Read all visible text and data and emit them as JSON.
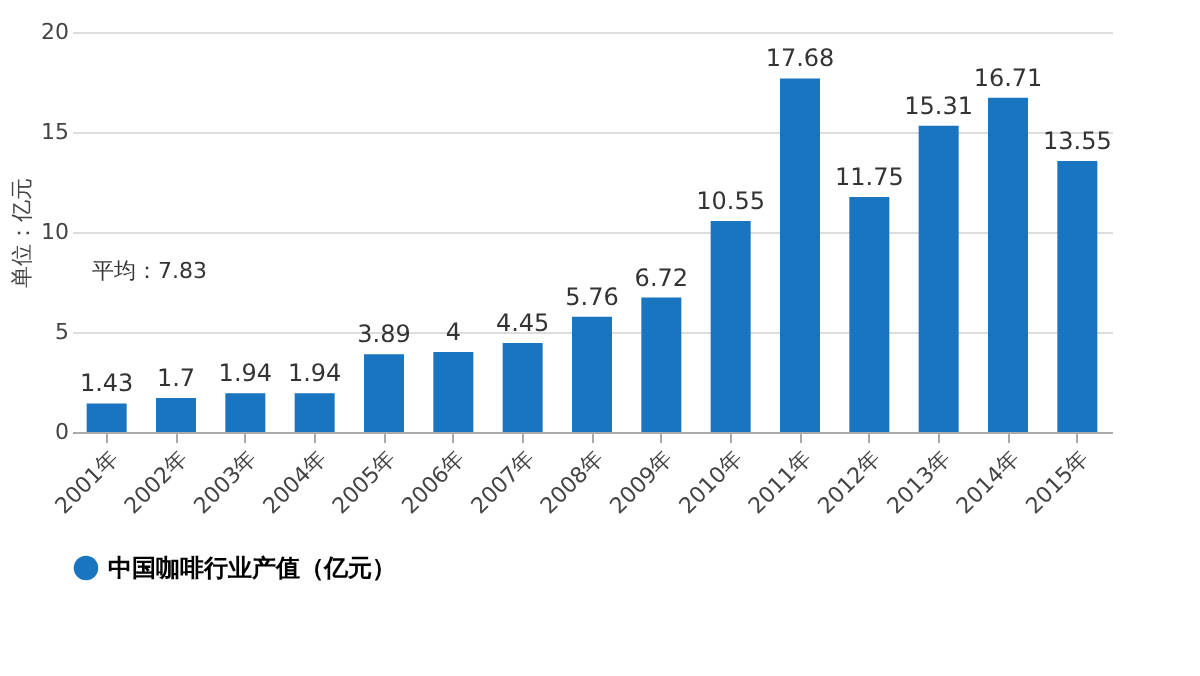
{
  "chart_data": {
    "type": "bar",
    "ylabel": "单位：亿元",
    "categories": [
      "2001年",
      "2002年",
      "2003年",
      "2004年",
      "2005年",
      "2006年",
      "2007年",
      "2008年",
      "2009年",
      "2010年",
      "2011年",
      "2012年",
      "2013年",
      "2014年",
      "2015年"
    ],
    "series": [
      {
        "name": "中国咖啡行业产值（亿元）",
        "color": "#1a75c1",
        "values": [
          1.43,
          1.7,
          1.94,
          1.94,
          3.89,
          4,
          4.45,
          5.76,
          6.72,
          10.55,
          17.68,
          11.75,
          15.31,
          16.71,
          13.55
        ]
      }
    ],
    "ylim": [
      0,
      20
    ],
    "yticks": [
      0,
      5,
      10,
      15,
      20
    ],
    "grid": "y",
    "legend": "bottom",
    "data_labels": true,
    "annotations": [
      "平均：7.83"
    ]
  }
}
